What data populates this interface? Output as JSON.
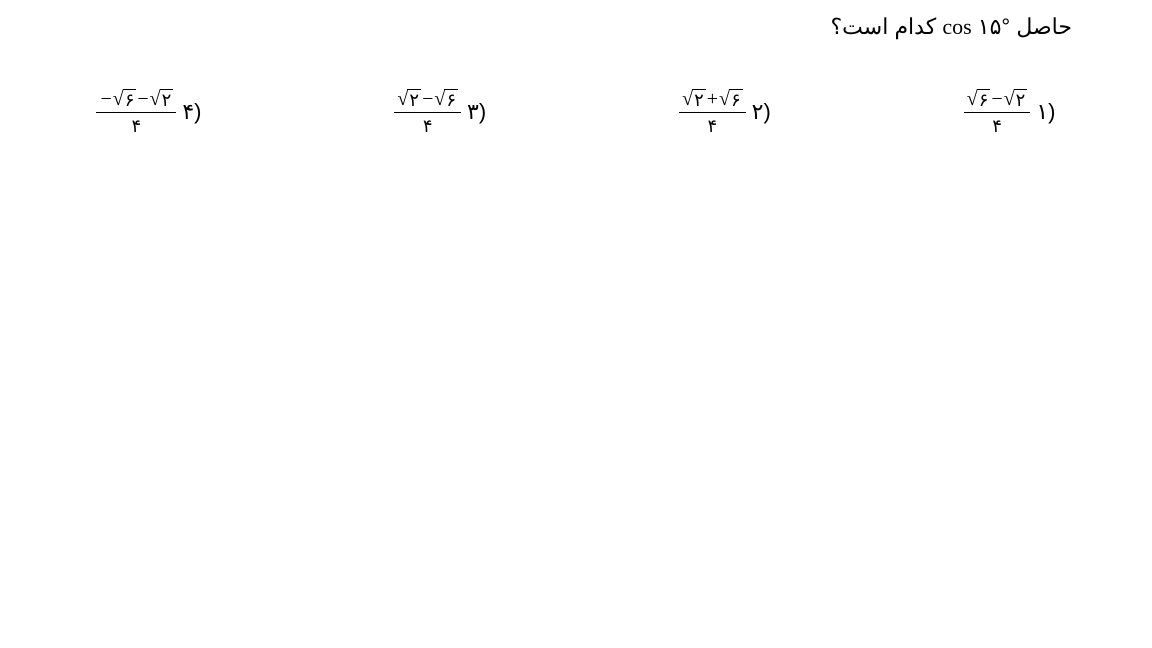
{
  "question": {
    "prefix": "حاصل",
    "func": "cos",
    "angle": "۱۵°",
    "suffix": "کدام است؟"
  },
  "denominator": "۴",
  "radicand_a": "۶",
  "radicand_b": "۲",
  "ops": {
    "plus": "+",
    "minus": "−",
    "neg": "−"
  },
  "options": [
    {
      "label": "(۱"
    },
    {
      "label": "(۲"
    },
    {
      "label": "(۳"
    },
    {
      "label": "(۴"
    }
  ]
}
